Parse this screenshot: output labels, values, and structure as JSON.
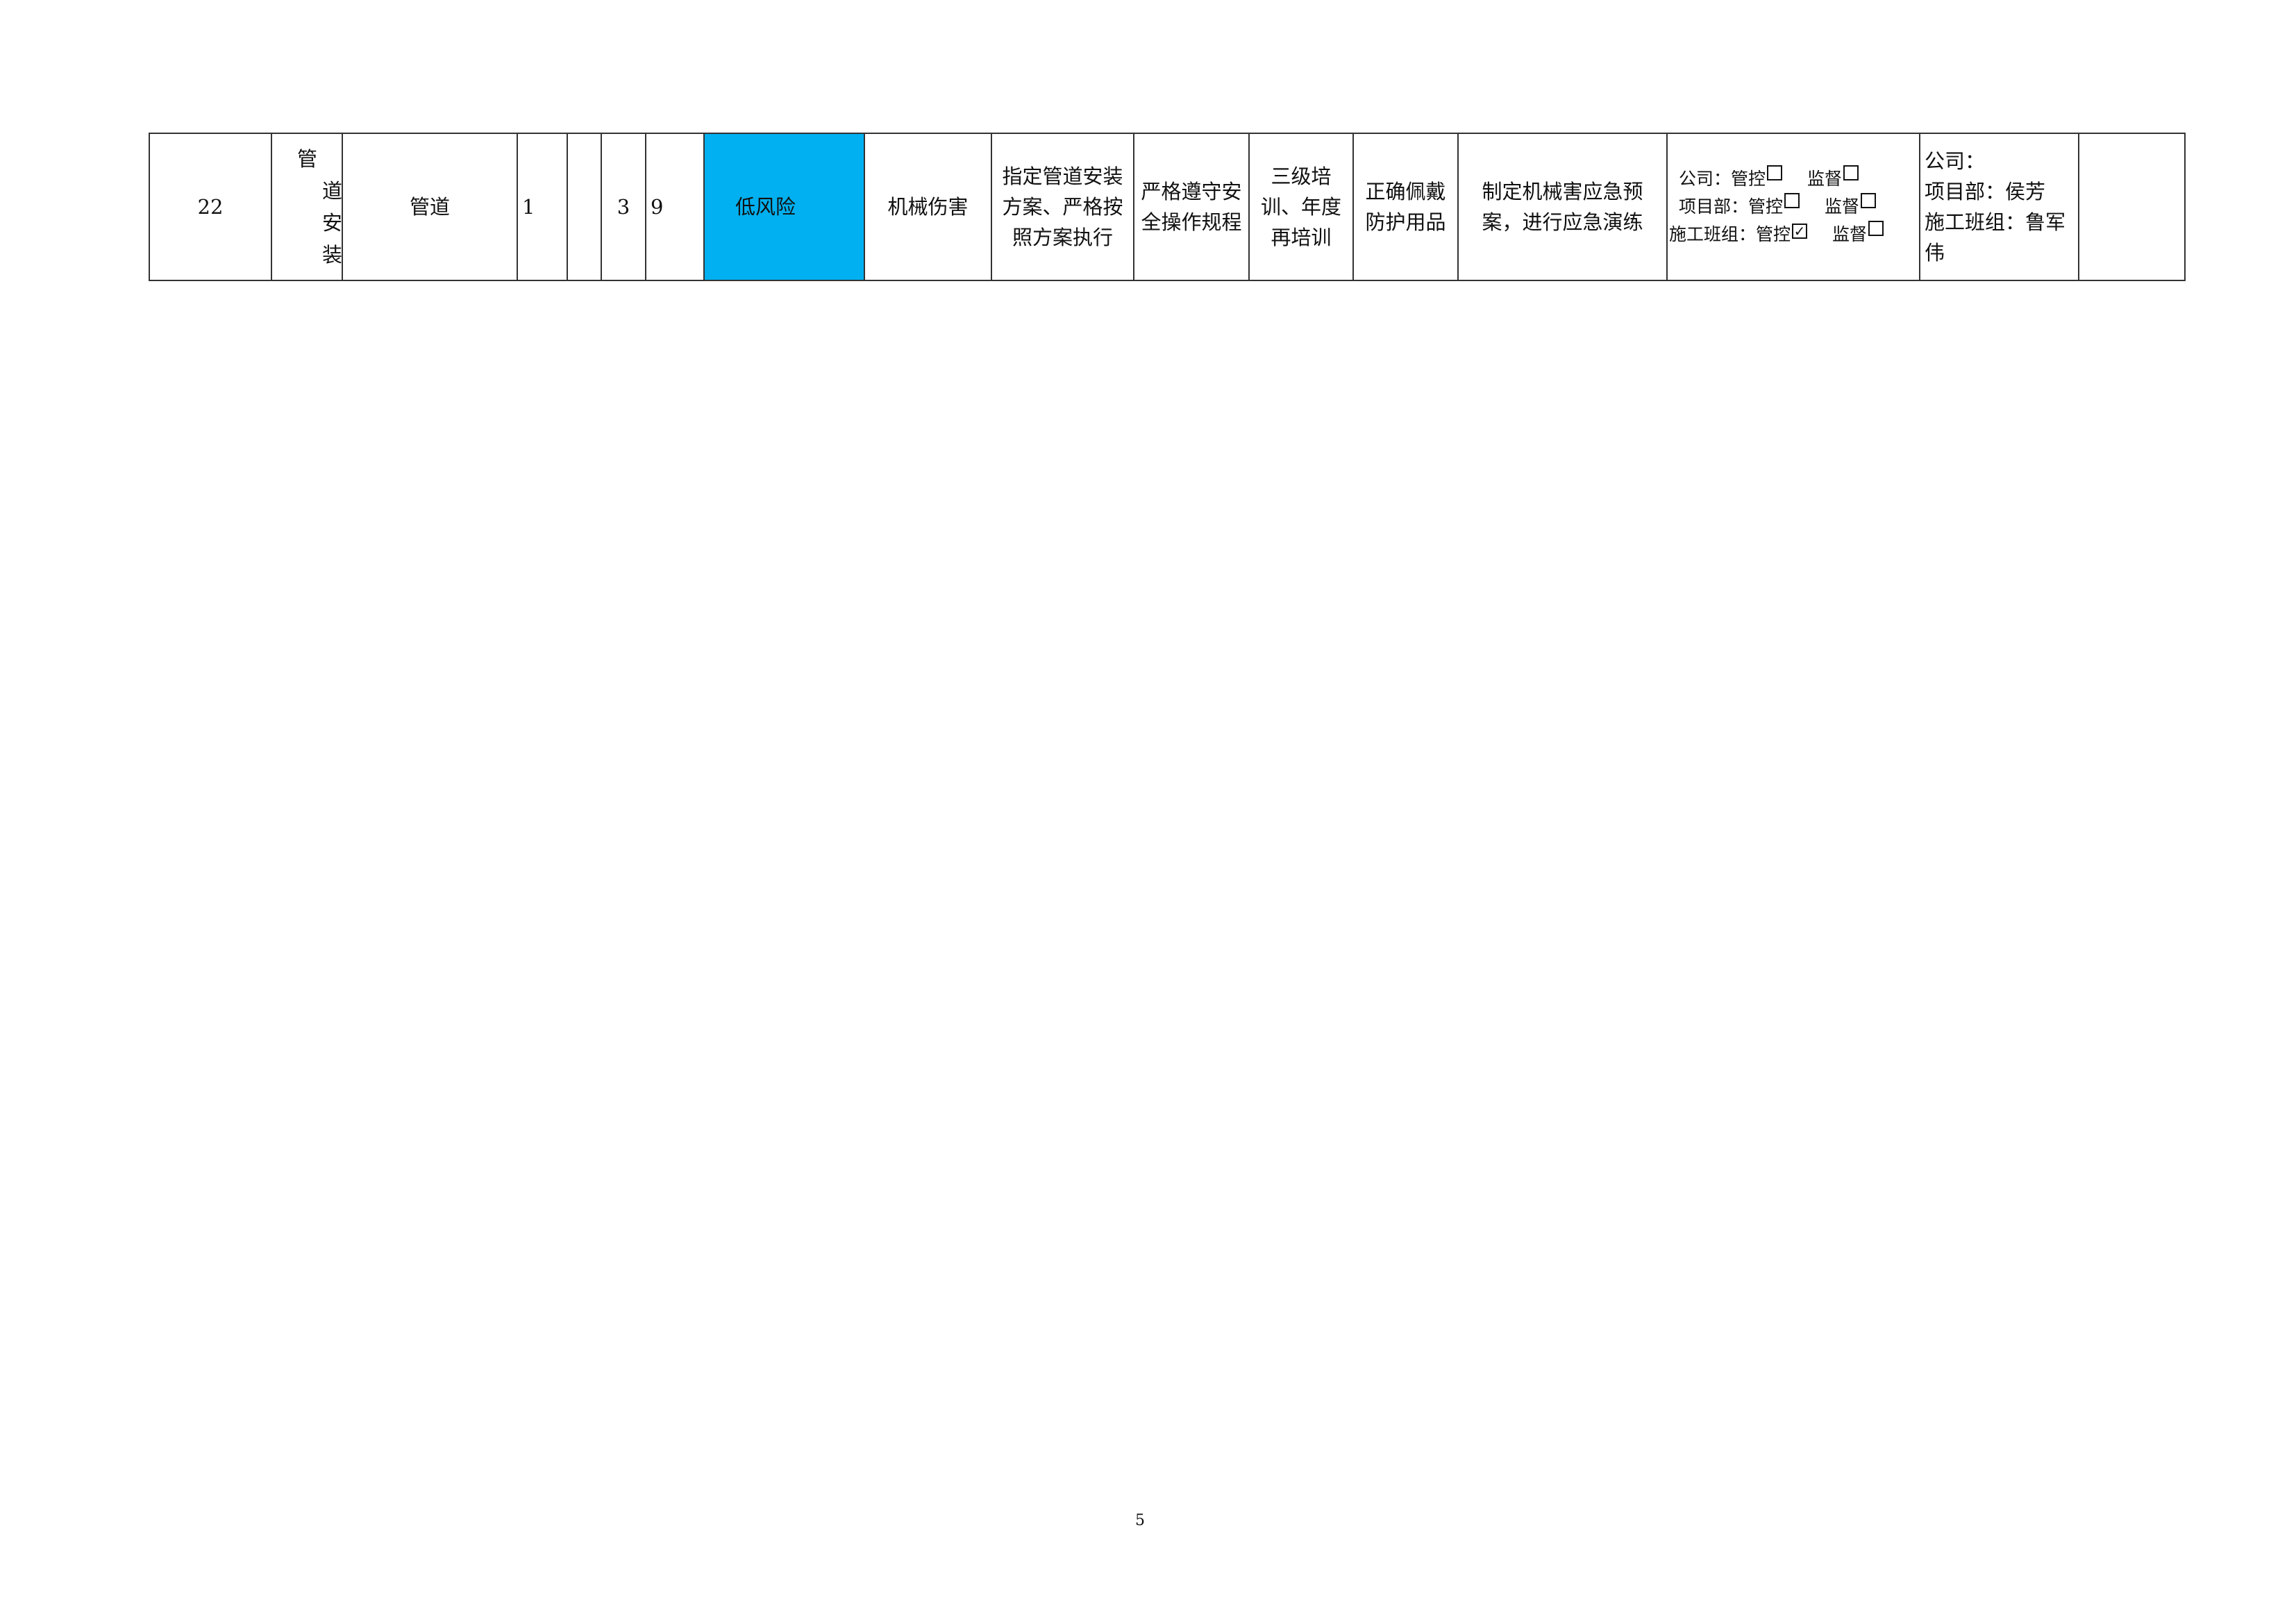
{
  "row": {
    "index": "22",
    "work_item_chars": [
      "管",
      "道",
      "安",
      "装"
    ],
    "object": "管道",
    "l": "1",
    "e": "",
    "c": "3",
    "d": "9",
    "risk_level": "低风险",
    "risk_level_color": "#00b0f0",
    "hazard": "机械伤害",
    "engineering_measure": "指定管道安装方案、严格按照方案执行",
    "management_measure": "严格遵守安全操作规程",
    "training_measure": "三级培训、年度再培训",
    "ppe_measure": "正确佩戴防护用品",
    "emergency_measure": "制定机械害应急预案，进行应急演练",
    "control_levels": [
      {
        "label": "公司：",
        "control": "管控",
        "control_checked": false,
        "supervise": "监督",
        "supervise_checked": false
      },
      {
        "label": "项目部：",
        "control": "管控",
        "control_checked": false,
        "supervise": "监督",
        "supervise_checked": false
      },
      {
        "label": "施工班组：",
        "control": "管控",
        "control_checked": true,
        "supervise": "监督",
        "supervise_checked": false
      }
    ],
    "responsible": [
      "公司：",
      "项目部：侯芳",
      "施工班组：鲁军伟"
    ],
    "remark": ""
  },
  "page_number": "5"
}
